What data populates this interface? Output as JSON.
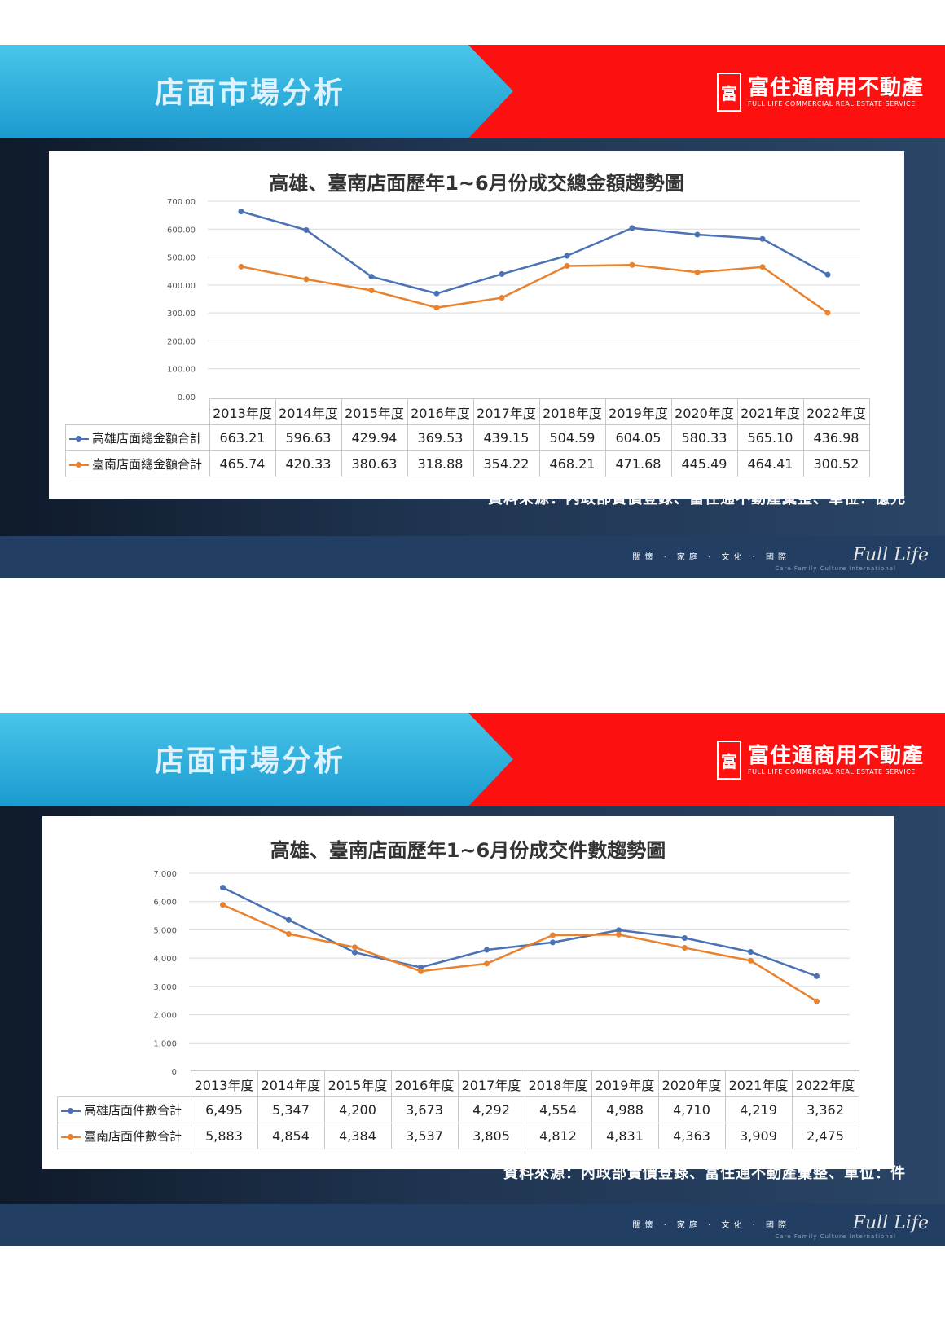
{
  "slides": [
    {
      "header": {
        "title": "店面市場分析",
        "logo_main": "富住通商用不動產",
        "logo_sub": "FULL LIFE COMMERCIAL REAL ESTATE SERVICE",
        "logo_mark": "富"
      },
      "source": "資料來源：內政部實價登錄、富住通不動產彙整、單位：億元",
      "footer": {
        "tagline": "關懷 · 家庭 · 文化 · 國際",
        "brand": "Full Life",
        "brand_sub": "Care Family Culture International"
      }
    },
    {
      "header": {
        "title": "店面市場分析",
        "logo_main": "富住通商用不動產",
        "logo_sub": "FULL LIFE COMMERCIAL REAL ESTATE SERVICE",
        "logo_mark": "富"
      },
      "source": "資料來源：內政部實價登錄、富住通不動產彙整、單位：件",
      "footer": {
        "tagline": "關懷 · 家庭 · 文化 · 國際",
        "brand": "Full Life",
        "brand_sub": "Care Family Culture International"
      }
    }
  ],
  "colors": {
    "kaohsiung": "#4a72b5",
    "tainan": "#e8822f",
    "grid": "#d9d9d9"
  },
  "chart_data": [
    {
      "type": "line",
      "title": "高雄、臺南店面歷年1~6月份成交總金額趨勢圖",
      "categories": [
        "2013年度",
        "2014年度",
        "2015年度",
        "2016年度",
        "2017年度",
        "2018年度",
        "2019年度",
        "2020年度",
        "2021年度",
        "2022年度"
      ],
      "yticks": [
        "0.00",
        "100.00",
        "200.00",
        "300.00",
        "400.00",
        "500.00",
        "600.00",
        "700.00"
      ],
      "ylim": [
        0,
        700
      ],
      "series": [
        {
          "name": "高雄店面總金額合計",
          "values": [
            663.21,
            596.63,
            429.94,
            369.53,
            439.15,
            504.59,
            604.05,
            580.33,
            565.1,
            436.98
          ],
          "labels": [
            "663.21",
            "596.63",
            "429.94",
            "369.53",
            "439.15",
            "504.59",
            "604.05",
            "580.33",
            "565.10",
            "436.98"
          ]
        },
        {
          "name": "臺南店面總金額合計",
          "values": [
            465.74,
            420.33,
            380.63,
            318.88,
            354.22,
            468.21,
            471.68,
            445.49,
            464.41,
            300.52
          ],
          "labels": [
            "465.74",
            "420.33",
            "380.63",
            "318.88",
            "354.22",
            "468.21",
            "471.68",
            "445.49",
            "464.41",
            "300.52"
          ]
        }
      ]
    },
    {
      "type": "line",
      "title": "高雄、臺南店面歷年1~6月份成交件數趨勢圖",
      "categories": [
        "2013年度",
        "2014年度",
        "2015年度",
        "2016年度",
        "2017年度",
        "2018年度",
        "2019年度",
        "2020年度",
        "2021年度",
        "2022年度"
      ],
      "yticks": [
        "0",
        "1,000",
        "2,000",
        "3,000",
        "4,000",
        "5,000",
        "6,000",
        "7,000"
      ],
      "ylim": [
        0,
        7000
      ],
      "series": [
        {
          "name": "高雄店面件數合計",
          "values": [
            6495,
            5347,
            4200,
            3673,
            4292,
            4554,
            4988,
            4710,
            4219,
            3362
          ],
          "labels": [
            "6,495",
            "5,347",
            "4,200",
            "3,673",
            "4,292",
            "4,554",
            "4,988",
            "4,710",
            "4,219",
            "3,362"
          ]
        },
        {
          "name": "臺南店面件數合計",
          "values": [
            5883,
            4854,
            4384,
            3537,
            3805,
            4812,
            4831,
            4363,
            3909,
            2475
          ],
          "labels": [
            "5,883",
            "4,854",
            "4,384",
            "3,537",
            "3,805",
            "4,812",
            "4,831",
            "4,363",
            "3,909",
            "2,475"
          ]
        }
      ]
    }
  ]
}
